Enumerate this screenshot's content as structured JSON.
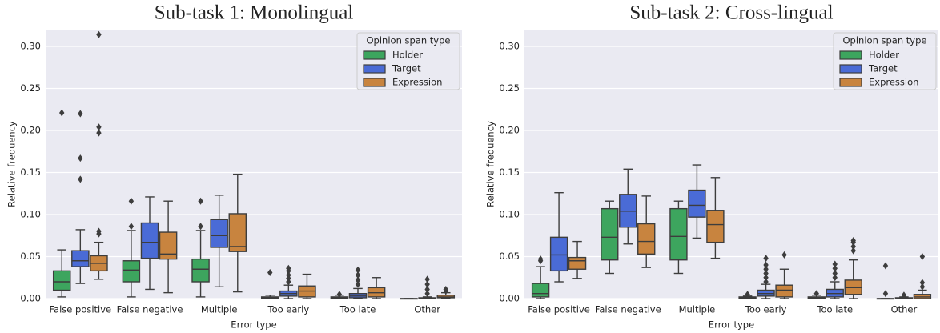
{
  "chart_data": [
    {
      "type": "box",
      "title": "Sub-task 1: Monolingual",
      "xlabel": "Error type",
      "ylabel": "Relative frequency",
      "legend_title": "Opinion span type",
      "legend": "upper right",
      "grid": true,
      "ylim": [
        0,
        0.32
      ],
      "yticks": [
        {
          "value": 0,
          "label": "0.00"
        },
        {
          "value": 0.05,
          "label": "0.05"
        },
        {
          "value": 0.1,
          "label": "0.10"
        },
        {
          "value": 0.15,
          "label": "0.15"
        },
        {
          "value": 0.2,
          "label": "0.20"
        },
        {
          "value": 0.25,
          "label": "0.25"
        },
        {
          "value": 0.3,
          "label": "0.30"
        }
      ],
      "categories": [
        "False positive",
        "False negative",
        "Multiple",
        "Too early",
        "Too late",
        "Other"
      ],
      "series": [
        {
          "name": "Holder",
          "color": "#3da55e",
          "values": [
            {
              "whislo": 0.002,
              "q1": 0.01,
              "med": 0.02,
              "q3": 0.033,
              "whishi": 0.058,
              "fliers": [
                0.221
              ]
            },
            {
              "whislo": 0.002,
              "q1": 0.02,
              "med": 0.034,
              "q3": 0.045,
              "whishi": 0.081,
              "fliers": [
                0.086,
                0.116
              ]
            },
            {
              "whislo": 0.002,
              "q1": 0.02,
              "med": 0.035,
              "q3": 0.047,
              "whishi": 0.081,
              "fliers": [
                0.086,
                0.116
              ]
            },
            {
              "whislo": 0,
              "q1": 0,
              "med": 0.001,
              "q3": 0.002,
              "whishi": 0.004,
              "fliers": [
                0.031
              ]
            },
            {
              "whislo": 0,
              "q1": 0,
              "med": 0.001,
              "q3": 0.002,
              "whishi": 0.004,
              "fliers": [
                0.005
              ]
            },
            {
              "whislo": 0,
              "q1": 0,
              "med": 0,
              "q3": 0,
              "whishi": 0,
              "fliers": []
            }
          ]
        },
        {
          "name": "Target",
          "color": "#4a6bd6",
          "values": [
            {
              "whislo": 0.018,
              "q1": 0.038,
              "med": 0.045,
              "q3": 0.057,
              "whishi": 0.082,
              "fliers": [
                0.142,
                0.167,
                0.22
              ]
            },
            {
              "whislo": 0.011,
              "q1": 0.048,
              "med": 0.067,
              "q3": 0.09,
              "whishi": 0.121,
              "fliers": []
            },
            {
              "whislo": 0.014,
              "q1": 0.061,
              "med": 0.075,
              "q3": 0.094,
              "whishi": 0.123,
              "fliers": []
            },
            {
              "whislo": 0,
              "q1": 0.003,
              "med": 0.006,
              "q3": 0.009,
              "whishi": 0.016,
              "fliers": [
                0.02,
                0.024,
                0.028,
                0.033,
                0.036
              ]
            },
            {
              "whislo": 0,
              "q1": 0.001,
              "med": 0.003,
              "q3": 0.006,
              "whishi": 0.012,
              "fliers": [
                0.017,
                0.022,
                0.028,
                0.034
              ]
            },
            {
              "whislo": 0,
              "q1": 0,
              "med": 0,
              "q3": 0.001,
              "whishi": 0.002,
              "fliers": [
                0.006,
                0.011,
                0.017,
                0.023
              ]
            }
          ]
        },
        {
          "name": "Expression",
          "color": "#c8843f",
          "values": [
            {
              "whislo": 0.023,
              "q1": 0.033,
              "med": 0.042,
              "q3": 0.051,
              "whishi": 0.067,
              "fliers": [
                0.077,
                0.08,
                0.197,
                0.204,
                0.314
              ]
            },
            {
              "whislo": 0.007,
              "q1": 0.047,
              "med": 0.053,
              "q3": 0.079,
              "whishi": 0.116,
              "fliers": []
            },
            {
              "whislo": 0.008,
              "q1": 0.056,
              "med": 0.062,
              "q3": 0.101,
              "whishi": 0.148,
              "fliers": []
            },
            {
              "whislo": 0,
              "q1": 0.002,
              "med": 0.009,
              "q3": 0.015,
              "whishi": 0.029,
              "fliers": []
            },
            {
              "whislo": 0,
              "q1": 0.002,
              "med": 0.007,
              "q3": 0.013,
              "whishi": 0.025,
              "fliers": []
            },
            {
              "whislo": 0,
              "q1": 0.001,
              "med": 0.002,
              "q3": 0.004,
              "whishi": 0.007,
              "fliers": [
                0.009,
                0.011
              ]
            }
          ]
        }
      ]
    },
    {
      "type": "box",
      "title": "Sub-task 2: Cross-lingual",
      "xlabel": "Error type",
      "ylabel": "Relative frequency",
      "legend_title": "Opinion span type",
      "legend": "upper right",
      "grid": true,
      "ylim": [
        0,
        0.32
      ],
      "yticks": [
        {
          "value": 0,
          "label": "0.00"
        },
        {
          "value": 0.05,
          "label": "0.05"
        },
        {
          "value": 0.1,
          "label": "0.10"
        },
        {
          "value": 0.15,
          "label": "0.15"
        },
        {
          "value": 0.2,
          "label": "0.20"
        },
        {
          "value": 0.25,
          "label": "0.25"
        },
        {
          "value": 0.3,
          "label": "0.30"
        }
      ],
      "categories": [
        "False positive",
        "False negative",
        "Multiple",
        "Too early",
        "Too late",
        "Other"
      ],
      "series": [
        {
          "name": "Holder",
          "color": "#3da55e",
          "values": [
            {
              "whislo": 0,
              "q1": 0.002,
              "med": 0.006,
              "q3": 0.018,
              "whishi": 0.038,
              "fliers": [
                0.045,
                0.047
              ]
            },
            {
              "whislo": 0.03,
              "q1": 0.046,
              "med": 0.073,
              "q3": 0.107,
              "whishi": 0.116,
              "fliers": []
            },
            {
              "whislo": 0.03,
              "q1": 0.046,
              "med": 0.074,
              "q3": 0.107,
              "whishi": 0.116,
              "fliers": []
            },
            {
              "whislo": 0,
              "q1": 0,
              "med": 0.001,
              "q3": 0.002,
              "whishi": 0.003,
              "fliers": [
                0.005
              ]
            },
            {
              "whislo": 0,
              "q1": 0,
              "med": 0.001,
              "q3": 0.002,
              "whishi": 0.004,
              "fliers": [
                0.006
              ]
            },
            {
              "whislo": 0,
              "q1": 0,
              "med": 0,
              "q3": 0,
              "whishi": 0,
              "fliers": [
                0.006,
                0.039
              ]
            }
          ]
        },
        {
          "name": "Target",
          "color": "#4a6bd6",
          "values": [
            {
              "whislo": 0.02,
              "q1": 0.033,
              "med": 0.052,
              "q3": 0.073,
              "whishi": 0.126,
              "fliers": []
            },
            {
              "whislo": 0.065,
              "q1": 0.085,
              "med": 0.104,
              "q3": 0.124,
              "whishi": 0.154,
              "fliers": []
            },
            {
              "whislo": 0.072,
              "q1": 0.097,
              "med": 0.111,
              "q3": 0.129,
              "whishi": 0.159,
              "fliers": []
            },
            {
              "whislo": 0,
              "q1": 0.003,
              "med": 0.006,
              "q3": 0.01,
              "whishi": 0.017,
              "fliers": [
                0.02,
                0.025,
                0.03,
                0.035,
                0.04,
                0.048
              ]
            },
            {
              "whislo": 0,
              "q1": 0.002,
              "med": 0.006,
              "q3": 0.011,
              "whishi": 0.02,
              "fliers": [
                0.025,
                0.03,
                0.036,
                0.041
              ]
            },
            {
              "whislo": 0,
              "q1": 0,
              "med": 0,
              "q3": 0.001,
              "whishi": 0.002,
              "fliers": [
                0.004
              ]
            }
          ]
        },
        {
          "name": "Expression",
          "color": "#c8843f",
          "values": [
            {
              "whislo": 0.024,
              "q1": 0.035,
              "med": 0.045,
              "q3": 0.049,
              "whishi": 0.068,
              "fliers": []
            },
            {
              "whislo": 0.037,
              "q1": 0.053,
              "med": 0.068,
              "q3": 0.089,
              "whishi": 0.122,
              "fliers": []
            },
            {
              "whislo": 0.048,
              "q1": 0.067,
              "med": 0.088,
              "q3": 0.105,
              "whishi": 0.144,
              "fliers": []
            },
            {
              "whislo": 0,
              "q1": 0.002,
              "med": 0.01,
              "q3": 0.016,
              "whishi": 0.035,
              "fliers": [
                0.052
              ]
            },
            {
              "whislo": 0,
              "q1": 0.005,
              "med": 0.013,
              "q3": 0.022,
              "whishi": 0.046,
              "fliers": [
                0.057,
                0.062,
                0.067,
                0.069
              ]
            },
            {
              "whislo": 0,
              "q1": 0,
              "med": 0.002,
              "q3": 0.005,
              "whishi": 0.01,
              "fliers": [
                0.014,
                0.019,
                0.05
              ]
            }
          ]
        }
      ]
    }
  ]
}
